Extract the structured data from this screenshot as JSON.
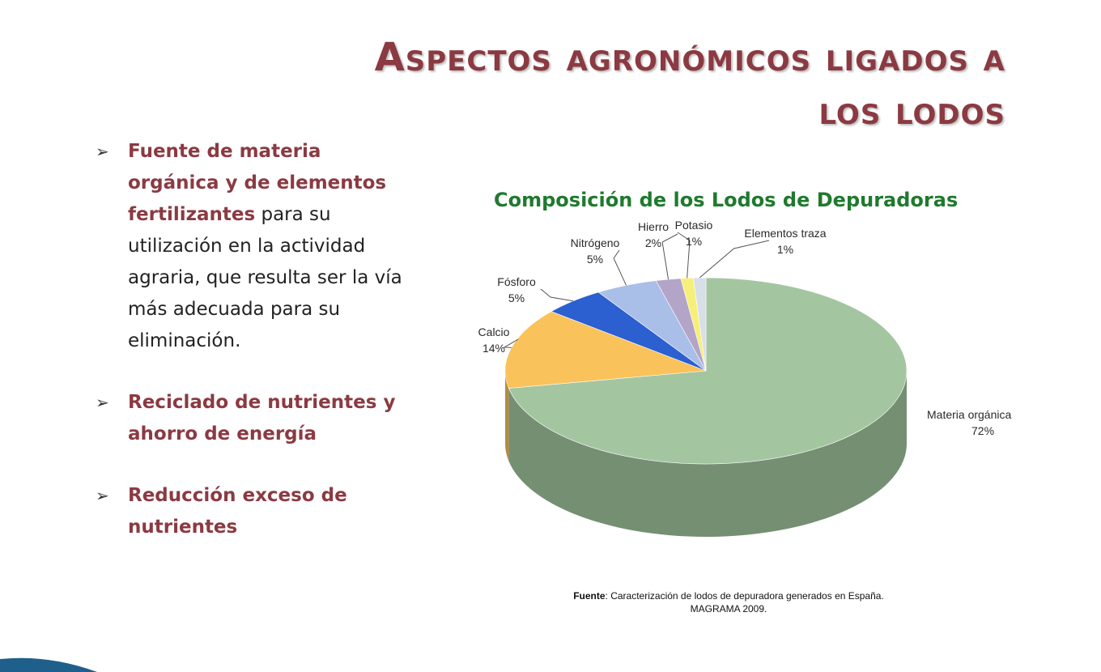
{
  "slide": {
    "title_line1": "Aspectos agronómicos ligados a",
    "title_line2": "los lodos",
    "bullets": [
      {
        "highlight": "Fuente de materia orgánica y de elementos fertilizantes",
        "rest": "para su utilización en la actividad agraria, que resulta ser la vía más adecuada para su eliminación."
      },
      {
        "highlight": "Reciclado de nutrientes y ahorro de energía",
        "rest": ""
      },
      {
        "highlight": "Reducción exceso de nutrientes",
        "rest": ""
      }
    ],
    "source_label": "Fuente",
    "source_text": ": Caracterización de lodos de depuradora generados en España. MAGRAMA 2009."
  },
  "chart_data": {
    "type": "pie",
    "title": "Composición de los Lodos de Depuradoras",
    "slices": [
      {
        "label": "Materia orgánica",
        "value": 72,
        "value_label": "72%",
        "color": "#a3c6a0"
      },
      {
        "label": "Calcio",
        "value": 14,
        "value_label": "14%",
        "color": "#f9c25a"
      },
      {
        "label": "Fósforo",
        "value": 5,
        "value_label": "5%",
        "color": "#2c5fcf"
      },
      {
        "label": "Nitrógeno",
        "value": 5,
        "value_label": "5%",
        "color": "#a9bfe8"
      },
      {
        "label": "Hierro",
        "value": 2,
        "value_label": "2%",
        "color": "#b2a5c8"
      },
      {
        "label": "Potasio",
        "value": 1,
        "value_label": "1%",
        "color": "#f6ef7a"
      },
      {
        "label": "Elementos traza",
        "value": 1,
        "value_label": "1%",
        "color": "#d7dfe8"
      }
    ]
  }
}
